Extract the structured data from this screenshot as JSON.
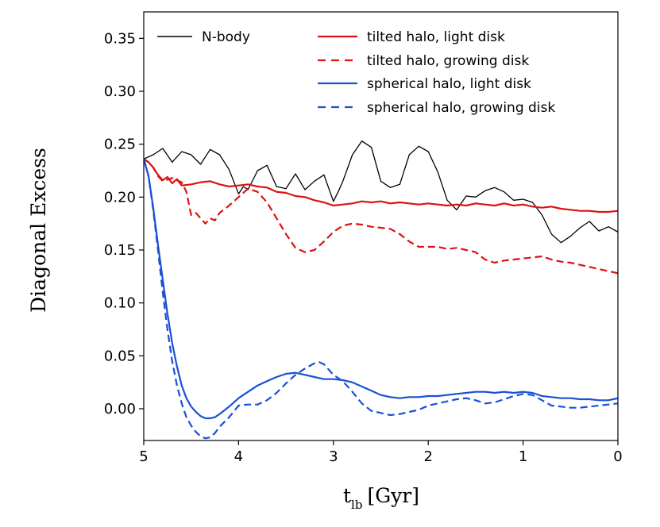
{
  "chart_data": {
    "type": "line",
    "xlabel": "t",
    "xlabel_sub": "lb",
    "xlabel_unit": "[Gyr]",
    "ylabel": "Diagonal Excess",
    "xlim": [
      5,
      0
    ],
    "ylim": [
      -0.03,
      0.375
    ],
    "xticks": [
      5,
      4,
      3,
      2,
      1,
      0
    ],
    "yticks": [
      0.0,
      0.05,
      0.1,
      0.15,
      0.2,
      0.25,
      0.3,
      0.35
    ],
    "xtick_labels": [
      "5",
      "4",
      "3",
      "2",
      "1",
      "0"
    ],
    "ytick_labels": [
      "0.00",
      "0.05",
      "0.10",
      "0.15",
      "0.20",
      "0.25",
      "0.30",
      "0.35"
    ],
    "grid": false,
    "legend_position": "top",
    "series": [
      {
        "name": "N-body",
        "color": "#000000",
        "style": "solid",
        "width": 1.3,
        "x": [
          5.0,
          4.9,
          4.8,
          4.7,
          4.6,
          4.5,
          4.4,
          4.3,
          4.2,
          4.1,
          4.0,
          3.95,
          3.9,
          3.8,
          3.7,
          3.6,
          3.5,
          3.4,
          3.3,
          3.2,
          3.1,
          3.0,
          2.95,
          2.9,
          2.8,
          2.7,
          2.6,
          2.5,
          2.4,
          2.3,
          2.2,
          2.1,
          2.0,
          1.9,
          1.8,
          1.7,
          1.6,
          1.5,
          1.4,
          1.3,
          1.2,
          1.1,
          1.0,
          0.9,
          0.8,
          0.7,
          0.6,
          0.5,
          0.4,
          0.3,
          0.2,
          0.1,
          0.0
        ],
        "y": [
          0.236,
          0.24,
          0.246,
          0.233,
          0.243,
          0.24,
          0.231,
          0.245,
          0.24,
          0.226,
          0.203,
          0.21,
          0.207,
          0.225,
          0.23,
          0.21,
          0.208,
          0.222,
          0.207,
          0.215,
          0.221,
          0.196,
          0.205,
          0.215,
          0.24,
          0.253,
          0.247,
          0.215,
          0.209,
          0.212,
          0.24,
          0.248,
          0.243,
          0.224,
          0.197,
          0.188,
          0.201,
          0.2,
          0.206,
          0.209,
          0.205,
          0.197,
          0.198,
          0.195,
          0.183,
          0.165,
          0.157,
          0.163,
          0.171,
          0.177,
          0.168,
          0.172,
          0.167
        ]
      },
      {
        "name": "tilted halo, light disk",
        "color": "#dd1111",
        "style": "solid",
        "width": 2.2,
        "x": [
          5.0,
          4.95,
          4.9,
          4.85,
          4.8,
          4.75,
          4.7,
          4.65,
          4.6,
          4.5,
          4.4,
          4.3,
          4.2,
          4.1,
          4.0,
          3.9,
          3.8,
          3.7,
          3.6,
          3.5,
          3.4,
          3.3,
          3.2,
          3.1,
          3.0,
          2.9,
          2.8,
          2.7,
          2.6,
          2.5,
          2.4,
          2.3,
          2.2,
          2.1,
          2.0,
          1.9,
          1.8,
          1.7,
          1.6,
          1.5,
          1.4,
          1.3,
          1.2,
          1.1,
          1.0,
          0.9,
          0.8,
          0.7,
          0.6,
          0.5,
          0.4,
          0.3,
          0.2,
          0.1,
          0.0
        ],
        "y": [
          0.236,
          0.233,
          0.228,
          0.221,
          0.216,
          0.219,
          0.213,
          0.217,
          0.211,
          0.212,
          0.214,
          0.215,
          0.212,
          0.21,
          0.211,
          0.212,
          0.21,
          0.209,
          0.205,
          0.204,
          0.201,
          0.2,
          0.197,
          0.195,
          0.192,
          0.193,
          0.194,
          0.196,
          0.195,
          0.196,
          0.194,
          0.195,
          0.194,
          0.193,
          0.194,
          0.193,
          0.192,
          0.193,
          0.192,
          0.194,
          0.193,
          0.192,
          0.194,
          0.192,
          0.193,
          0.191,
          0.19,
          0.191,
          0.189,
          0.188,
          0.187,
          0.187,
          0.186,
          0.186,
          0.187
        ]
      },
      {
        "name": "tilted halo, growing disk",
        "color": "#dd1111",
        "style": "dashed",
        "width": 2.2,
        "x": [
          5.0,
          4.95,
          4.9,
          4.85,
          4.8,
          4.7,
          4.6,
          4.55,
          4.5,
          4.45,
          4.4,
          4.35,
          4.3,
          4.25,
          4.2,
          4.1,
          4.0,
          3.9,
          3.8,
          3.7,
          3.6,
          3.5,
          3.4,
          3.3,
          3.2,
          3.1,
          3.0,
          2.9,
          2.8,
          2.7,
          2.6,
          2.5,
          2.4,
          2.3,
          2.2,
          2.1,
          2.0,
          1.9,
          1.8,
          1.7,
          1.6,
          1.5,
          1.4,
          1.3,
          1.2,
          1.1,
          1.0,
          0.9,
          0.8,
          0.7,
          0.6,
          0.5,
          0.4,
          0.3,
          0.2,
          0.1,
          0.0
        ],
        "y": [
          0.236,
          0.233,
          0.228,
          0.22,
          0.215,
          0.218,
          0.214,
          0.205,
          0.183,
          0.185,
          0.18,
          0.175,
          0.18,
          0.178,
          0.185,
          0.192,
          0.2,
          0.208,
          0.205,
          0.195,
          0.18,
          0.165,
          0.152,
          0.148,
          0.15,
          0.158,
          0.167,
          0.173,
          0.175,
          0.174,
          0.172,
          0.171,
          0.17,
          0.165,
          0.158,
          0.153,
          0.153,
          0.153,
          0.151,
          0.152,
          0.15,
          0.148,
          0.141,
          0.138,
          0.14,
          0.141,
          0.142,
          0.143,
          0.144,
          0.141,
          0.139,
          0.138,
          0.136,
          0.134,
          0.132,
          0.13,
          0.128
        ]
      },
      {
        "name": "spherical halo, light disk",
        "color": "#1a4fd6",
        "style": "solid",
        "width": 2.2,
        "x": [
          5.0,
          4.95,
          4.9,
          4.85,
          4.8,
          4.75,
          4.7,
          4.65,
          4.6,
          4.55,
          4.5,
          4.45,
          4.4,
          4.35,
          4.3,
          4.25,
          4.2,
          4.1,
          4.0,
          3.9,
          3.8,
          3.7,
          3.6,
          3.5,
          3.4,
          3.3,
          3.2,
          3.1,
          3.0,
          2.9,
          2.8,
          2.7,
          2.6,
          2.5,
          2.4,
          2.3,
          2.2,
          2.1,
          2.0,
          1.9,
          1.8,
          1.7,
          1.6,
          1.5,
          1.4,
          1.3,
          1.2,
          1.1,
          1.0,
          0.9,
          0.8,
          0.7,
          0.6,
          0.5,
          0.4,
          0.3,
          0.2,
          0.1,
          0.0
        ],
        "y": [
          0.236,
          0.22,
          0.19,
          0.155,
          0.122,
          0.09,
          0.062,
          0.04,
          0.022,
          0.01,
          0.002,
          -0.003,
          -0.007,
          -0.009,
          -0.009,
          -0.008,
          -0.005,
          0.002,
          0.01,
          0.016,
          0.022,
          0.026,
          0.03,
          0.033,
          0.034,
          0.032,
          0.03,
          0.028,
          0.028,
          0.027,
          0.025,
          0.021,
          0.017,
          0.013,
          0.011,
          0.01,
          0.011,
          0.011,
          0.012,
          0.012,
          0.013,
          0.014,
          0.015,
          0.016,
          0.016,
          0.015,
          0.016,
          0.015,
          0.016,
          0.015,
          0.012,
          0.011,
          0.01,
          0.01,
          0.009,
          0.009,
          0.008,
          0.008,
          0.01
        ]
      },
      {
        "name": "spherical halo, growing disk",
        "color": "#1a4fd6",
        "style": "dashed",
        "width": 2.2,
        "x": [
          5.0,
          4.95,
          4.9,
          4.85,
          4.8,
          4.75,
          4.7,
          4.65,
          4.6,
          4.55,
          4.5,
          4.45,
          4.4,
          4.35,
          4.3,
          4.25,
          4.2,
          4.1,
          4.0,
          3.9,
          3.8,
          3.7,
          3.6,
          3.5,
          3.4,
          3.3,
          3.2,
          3.15,
          3.1,
          3.0,
          2.9,
          2.8,
          2.7,
          2.6,
          2.5,
          2.4,
          2.3,
          2.2,
          2.1,
          2.0,
          1.9,
          1.8,
          1.7,
          1.6,
          1.5,
          1.4,
          1.3,
          1.2,
          1.1,
          1.0,
          0.9,
          0.8,
          0.7,
          0.6,
          0.5,
          0.4,
          0.3,
          0.2,
          0.1,
          0.0
        ],
        "y": [
          0.236,
          0.22,
          0.188,
          0.15,
          0.11,
          0.075,
          0.045,
          0.022,
          0.005,
          -0.008,
          -0.016,
          -0.022,
          -0.026,
          -0.028,
          -0.027,
          -0.023,
          -0.017,
          -0.008,
          0.003,
          0.004,
          0.004,
          0.008,
          0.015,
          0.024,
          0.032,
          0.038,
          0.043,
          0.044,
          0.042,
          0.032,
          0.026,
          0.016,
          0.005,
          -0.002,
          -0.004,
          -0.006,
          -0.005,
          -0.003,
          -0.001,
          0.003,
          0.005,
          0.007,
          0.009,
          0.01,
          0.008,
          0.005,
          0.006,
          0.009,
          0.012,
          0.014,
          0.013,
          0.008,
          0.003,
          0.002,
          0.001,
          0.001,
          0.002,
          0.003,
          0.004,
          0.005
        ]
      }
    ]
  }
}
